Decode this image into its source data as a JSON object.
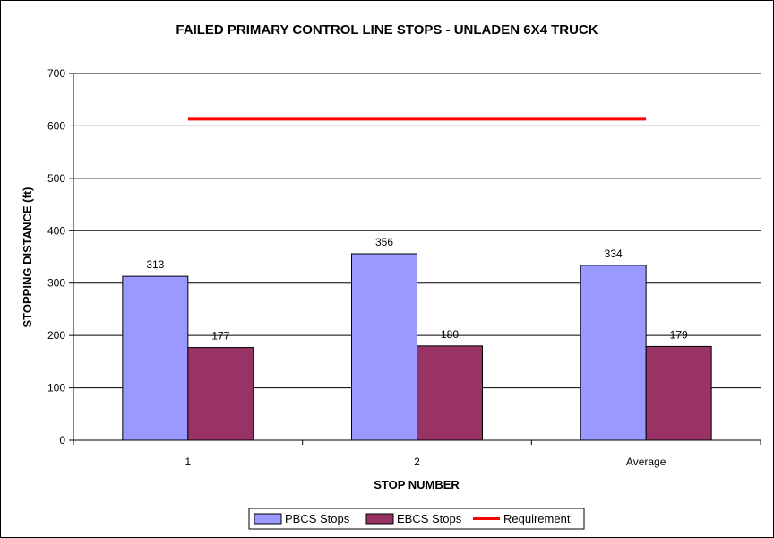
{
  "chart_data": {
    "type": "bar",
    "title": "FAILED PRIMARY CONTROL LINE STOPS - UNLADEN 6X4 TRUCK",
    "xlabel": "STOP NUMBER",
    "ylabel": "STOPPING DISTANCE (ft)",
    "categories": [
      "1",
      "2",
      "Average"
    ],
    "ylim": [
      0,
      700
    ],
    "yticks": [
      0,
      100,
      200,
      300,
      400,
      500,
      600,
      700
    ],
    "grid": true,
    "series": [
      {
        "name": "PBCS Stops",
        "values": [
          313,
          356,
          334
        ],
        "color": "#9999ff"
      },
      {
        "name": "EBCS Stops",
        "values": [
          177,
          180,
          179
        ],
        "color": "#993366"
      }
    ],
    "reference_line": {
      "name": "Requirement",
      "value": 613,
      "color": "#ff0000"
    },
    "legend_position": "bottom"
  }
}
